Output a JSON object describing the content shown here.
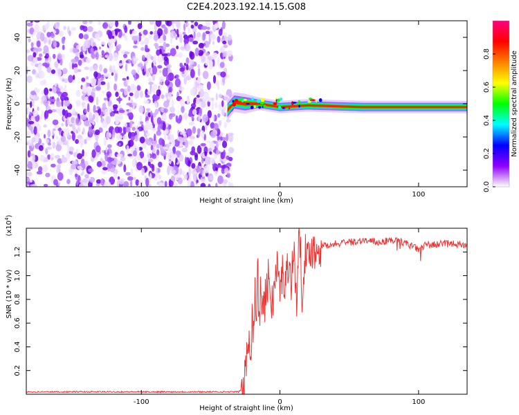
{
  "figure": {
    "title": "C2E4.2023.192.14.15.G08"
  },
  "chart_data": [
    {
      "type": "heatmap",
      "xlabel": "Height of straight line (km)",
      "ylabel": "Frequency (Hz)",
      "xlim": [
        -183,
        135
      ],
      "ylim": [
        -50,
        50
      ],
      "xticks": [
        -100,
        0,
        100
      ],
      "xtick_labels": [
        "-100",
        "0",
        "100"
      ],
      "yticks": [
        -40,
        -20,
        0,
        20,
        40
      ],
      "ytick_labels": [
        "-40",
        "-20",
        "0",
        "20",
        "40"
      ],
      "noise_region_end_x": -38,
      "signal_start_x": -38,
      "signal_track": [
        {
          "x": -38,
          "y": -4
        },
        {
          "x": -33,
          "y": 1
        },
        {
          "x": -25,
          "y": 0
        },
        {
          "x": -15,
          "y": 0
        },
        {
          "x": 0,
          "y": -2
        },
        {
          "x": 20,
          "y": -1
        },
        {
          "x": 60,
          "y": -2
        },
        {
          "x": 135,
          "y": -2
        }
      ],
      "colorbar": {
        "label": "Normalized spectral amplitude",
        "range": [
          0,
          1
        ],
        "ticks": [
          0,
          0.2,
          0.4,
          0.6,
          0.8
        ],
        "tick_labels": [
          "0.0",
          "0.2",
          "0.4",
          "0.6",
          "0.8"
        ],
        "colors": [
          "#ffffff",
          "#9000ff",
          "#0000ff",
          "#00ffff",
          "#00ff00",
          "#ffff00",
          "#ff8000",
          "#ff0000",
          "#ff0080"
        ]
      }
    },
    {
      "type": "line",
      "xlabel": "Height of straight line (km)",
      "ylabel": "SNR (10 * v/v)",
      "yscale_note": "(x10^4)",
      "yscale_base": "(x10",
      "yscale_exp": "4",
      "yscale_close": ")",
      "xlim": [
        -183,
        135
      ],
      "ylim": [
        0,
        1.4
      ],
      "xticks": [
        -100,
        0,
        100
      ],
      "xtick_labels": [
        "-100",
        "0",
        "100"
      ],
      "yticks": [
        0.2,
        0.4,
        0.6,
        0.8,
        1.0,
        1.2
      ],
      "ytick_labels": [
        "0.2",
        "0.4",
        "0.6",
        "0.8",
        "1.0",
        "1.2"
      ],
      "color": "#ee3333",
      "series": [
        {
          "x": [
            -183,
            -150,
            -100,
            -60,
            -30,
            -26,
            -24,
            -22,
            -21,
            -20,
            -19,
            -18,
            -17,
            -16,
            -15,
            -14,
            -12,
            -10,
            -8,
            -6,
            -4,
            -2,
            0,
            2,
            4,
            6,
            8,
            10,
            12,
            14,
            16,
            18,
            20,
            22,
            25,
            30,
            40,
            50,
            60,
            70,
            80,
            90,
            100,
            105,
            110,
            120,
            135
          ],
          "y": [
            0.02,
            0.02,
            0.02,
            0.02,
            0.02,
            0.05,
            0.3,
            0.55,
            0.35,
            0.7,
            0.5,
            0.9,
            0.6,
            1.2,
            0.4,
            0.95,
            0.7,
            0.85,
            1.0,
            0.75,
            0.9,
            1.1,
            0.85,
            1.05,
            0.9,
            1.15,
            0.95,
            1.2,
            0.8,
            1.38,
            0.85,
            1.2,
            1.1,
            1.25,
            1.2,
            1.25,
            1.27,
            1.28,
            1.3,
            1.28,
            1.3,
            1.28,
            1.22,
            1.26,
            1.26,
            1.27,
            1.26
          ]
        }
      ]
    }
  ]
}
